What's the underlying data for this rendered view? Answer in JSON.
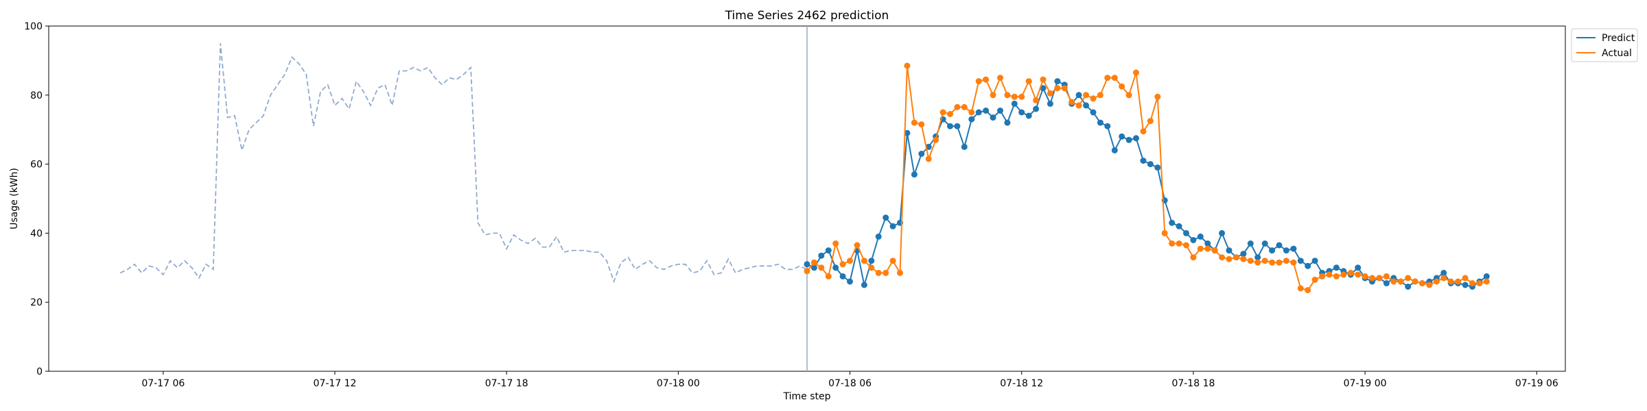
{
  "chart_data": {
    "type": "line",
    "title": "Time Series 2462 prediction",
    "xlabel": "Time step",
    "ylabel": "Usage (kWh)",
    "ylim": [
      0,
      100
    ],
    "yticks": [
      0,
      20,
      40,
      60,
      80,
      100
    ],
    "xlim": [
      "07-17 02:00",
      "07-19 07:00"
    ],
    "xticks": [
      {
        "t": "07-17 06:00",
        "label": "07-17 06"
      },
      {
        "t": "07-17 12:00",
        "label": "07-17 12"
      },
      {
        "t": "07-17 18:00",
        "label": "07-17 18"
      },
      {
        "t": "07-18 00:00",
        "label": "07-18 00"
      },
      {
        "t": "07-18 06:00",
        "label": "07-18 06"
      },
      {
        "t": "07-18 12:00",
        "label": "07-18 12"
      },
      {
        "t": "07-18 18:00",
        "label": "07-18 18"
      },
      {
        "t": "07-19 00:00",
        "label": "07-19 00"
      },
      {
        "t": "07-19 06:00",
        "label": "07-19 06"
      }
    ],
    "interval_minutes": 15,
    "grid": false,
    "legend_position": "top-right",
    "forecast_start": "07-18 04:30",
    "colors": {
      "history": "#8faacf",
      "predict": "#1f77b4",
      "actual": "#ff7f0e",
      "divider": "#8faacf"
    },
    "history": {
      "start": "07-17 04:30",
      "style": "dashed",
      "values": [
        28.5,
        29.5,
        31.0,
        28.5,
        30.5,
        30.0,
        28.0,
        32.0,
        30.0,
        32.0,
        30.0,
        27.0,
        31.0,
        29.5,
        95.0,
        73.5,
        74.0,
        64.0,
        70.0,
        72.0,
        74.0,
        80.0,
        83.0,
        86.0,
        91.0,
        89.0,
        86.0,
        71.0,
        81.0,
        83.0,
        77.0,
        79.0,
        76.0,
        84.0,
        81.0,
        77.0,
        82.0,
        83.0,
        77.0,
        87.0,
        87.0,
        88.0,
        87.0,
        88.0,
        85.0,
        83.0,
        85.0,
        84.5,
        86.0,
        88.0,
        43.0,
        39.5,
        40.0,
        40.0,
        35.5,
        39.5,
        38.0,
        37.0,
        38.5,
        36.0,
        36.0,
        39.0,
        34.5,
        35.0,
        35.0,
        35.0,
        34.5,
        34.5,
        32.0,
        26.0,
        31.5,
        33.0,
        29.5,
        31.0,
        32.0,
        30.0,
        29.5,
        30.5,
        31.0,
        31.0,
        28.5,
        29.0,
        32.0,
        28.0,
        28.5,
        32.5,
        28.5,
        29.5,
        30.0,
        30.5,
        30.5,
        30.5,
        31.0,
        29.5,
        29.5,
        30.5,
        29.5
      ]
    },
    "series": [
      {
        "name": "Predict",
        "start": "07-18 04:30",
        "values": [
          31.0,
          30.0,
          33.5,
          35.0,
          30.0,
          27.5,
          26.0,
          35.0,
          25.0,
          32.0,
          39.0,
          44.5,
          42.0,
          43.0,
          69.0,
          57.0,
          63.0,
          65.0,
          68.0,
          73.0,
          71.0,
          71.0,
          65.0,
          73.0,
          75.0,
          75.5,
          73.5,
          75.5,
          72.0,
          77.5,
          75.0,
          74.0,
          76.0,
          82.0,
          77.5,
          84.0,
          83.0,
          77.5,
          80.0,
          77.0,
          75.0,
          72.0,
          71.0,
          64.0,
          68.0,
          67.0,
          67.5,
          61.0,
          60.0,
          59.0,
          49.5,
          43.0,
          42.0,
          40.0,
          38.0,
          39.0,
          37.0,
          35.0,
          40.0,
          35.0,
          33.0,
          34.0,
          37.0,
          33.0,
          37.0,
          35.0,
          36.5,
          35.0,
          35.5,
          32.0,
          30.5,
          32.0,
          28.5,
          29.0,
          30.0,
          29.0,
          28.0,
          30.0,
          27.0,
          26.0,
          27.0,
          25.5,
          27.0,
          26.0,
          24.5,
          26.0,
          25.5,
          26.0,
          27.0,
          28.5,
          25.5,
          25.5,
          25.0,
          24.5,
          26.0,
          27.5
        ]
      },
      {
        "name": "Actual",
        "start": "07-18 04:30",
        "values": [
          29.0,
          31.5,
          30.0,
          27.5,
          37.0,
          31.0,
          32.0,
          36.5,
          32.0,
          30.0,
          28.5,
          28.5,
          32.0,
          28.5,
          88.5,
          72.0,
          71.5,
          61.5,
          67.0,
          75.0,
          74.5,
          76.5,
          76.5,
          75.0,
          84.0,
          84.5,
          80.0,
          85.0,
          80.0,
          79.5,
          79.5,
          84.0,
          78.5,
          84.5,
          80.5,
          82.0,
          82.0,
          78.0,
          77.0,
          80.0,
          79.0,
          80.0,
          85.0,
          85.0,
          82.5,
          80.0,
          86.5,
          69.5,
          72.5,
          79.5,
          40.0,
          37.0,
          37.0,
          36.5,
          33.0,
          35.5,
          35.5,
          35.0,
          33.0,
          32.5,
          33.0,
          32.5,
          32.0,
          31.5,
          32.0,
          31.5,
          31.5,
          32.0,
          31.5,
          24.0,
          23.5,
          26.5,
          27.5,
          28.0,
          27.5,
          28.0,
          28.5,
          28.0,
          27.5,
          27.0,
          27.0,
          27.5,
          26.0,
          26.0,
          27.0,
          26.0,
          25.5,
          25.0,
          26.0,
          27.0,
          26.0,
          26.0,
          27.0,
          25.5,
          25.5,
          26.0
        ]
      }
    ]
  }
}
